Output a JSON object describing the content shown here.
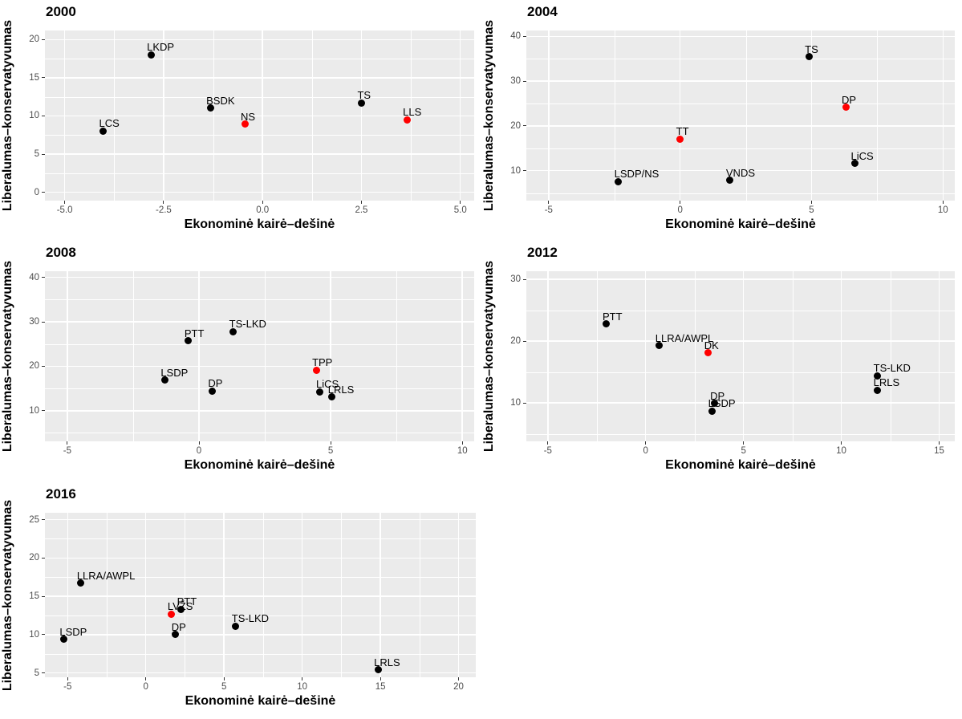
{
  "figure_title": "",
  "axis_titles": {
    "x": "Ekonominė kairė–dešinė",
    "y": "Liberalumas–konservatyvumas"
  },
  "colors": {
    "panel_background": "#EBEBEB",
    "gridline": "#FFFFFF",
    "black": "#000000",
    "red": "#FF0000",
    "tick_label": "#4D4D4D",
    "tick_mark": "#333333",
    "title_text": "#000000",
    "figure_background": "#FFFFFF"
  },
  "chart_data": [
    {
      "type": "scatter",
      "title": "2000",
      "xlabel": "Ekonominė kairė–dešinė",
      "ylabel": "Liberalumas–konservatyvumas",
      "xlim": [
        -5.5,
        5.35
      ],
      "ylim": [
        -1.1,
        21.2
      ],
      "x_ticks": [
        -5,
        -2.5,
        0,
        2.5,
        5
      ],
      "x_tick_labels": [
        "-5.0",
        "-2.5",
        "0.0",
        "2.5",
        "5.0"
      ],
      "x_minor_ticks": [
        -3.75,
        -1.25,
        1.25,
        3.75
      ],
      "y_ticks": [
        0,
        5,
        10,
        15,
        20
      ],
      "y_tick_labels": [
        "0",
        "5",
        "10",
        "15",
        "20"
      ],
      "y_minor_ticks": [
        2.5,
        7.5,
        12.5,
        17.5
      ],
      "grid": true,
      "legend": false,
      "points": [
        {
          "label": "LCS",
          "x": -4.03,
          "y": 8.0,
          "color": "black"
        },
        {
          "label": "LKDP",
          "x": -2.82,
          "y": 18.0,
          "color": "black"
        },
        {
          "label": "BSDK",
          "x": -1.32,
          "y": 11.0,
          "color": "black"
        },
        {
          "label": "NS",
          "x": -0.45,
          "y": 8.9,
          "color": "red"
        },
        {
          "label": "TS",
          "x": 2.5,
          "y": 11.7,
          "color": "black"
        },
        {
          "label": "LLS",
          "x": 3.65,
          "y": 9.5,
          "color": "red"
        }
      ]
    },
    {
      "type": "scatter",
      "title": "2004",
      "xlabel": "Ekonominė kairė–dešinė",
      "ylabel": "Liberalumas–konservatyvumas",
      "xlim": [
        -5.85,
        10.45
      ],
      "ylim": [
        3.3,
        41.3
      ],
      "x_ticks": [
        -5,
        0,
        5,
        10
      ],
      "x_tick_labels": [
        "-5",
        "0",
        "5",
        "10"
      ],
      "x_minor_ticks": [
        -2.5,
        2.5,
        7.5
      ],
      "y_ticks": [
        10,
        20,
        30,
        40
      ],
      "y_tick_labels": [
        "10",
        "20",
        "30",
        "40"
      ],
      "y_minor_ticks": [
        5,
        15,
        25,
        35
      ],
      "grid": true,
      "legend": false,
      "points": [
        {
          "label": "LSDP/NS",
          "x": -2.35,
          "y": 7.6,
          "color": "black"
        },
        {
          "label": "TT",
          "x": 0.0,
          "y": 17.1,
          "color": "red"
        },
        {
          "label": "VNDS",
          "x": 1.9,
          "y": 7.8,
          "color": "black"
        },
        {
          "label": "TS",
          "x": 4.9,
          "y": 35.4,
          "color": "black"
        },
        {
          "label": "DP",
          "x": 6.3,
          "y": 24.1,
          "color": "red"
        },
        {
          "label": "LiCS",
          "x": 6.65,
          "y": 11.6,
          "color": "black"
        }
      ]
    },
    {
      "type": "scatter",
      "title": "2008",
      "xlabel": "Ekonominė kairė–dešinė",
      "ylabel": "Liberalumas–konservatyvumas",
      "xlim": [
        -5.85,
        10.45
      ],
      "ylim": [
        3.1,
        41.4
      ],
      "x_ticks": [
        -5,
        0,
        5,
        10
      ],
      "x_tick_labels": [
        "-5",
        "0",
        "5",
        "10"
      ],
      "x_minor_ticks": [
        -2.5,
        2.5,
        7.5
      ],
      "y_ticks": [
        10,
        20,
        30,
        40
      ],
      "y_tick_labels": [
        "10",
        "20",
        "30",
        "40"
      ],
      "y_minor_ticks": [
        5,
        15,
        25,
        35
      ],
      "grid": true,
      "legend": false,
      "points": [
        {
          "label": "LSDP",
          "x": -1.3,
          "y": 16.9,
          "color": "black"
        },
        {
          "label": "PTT",
          "x": -0.4,
          "y": 25.7,
          "color": "black"
        },
        {
          "label": "DP",
          "x": 0.5,
          "y": 14.4,
          "color": "black"
        },
        {
          "label": "TS-LKD",
          "x": 1.3,
          "y": 27.8,
          "color": "black"
        },
        {
          "label": "TPP",
          "x": 4.45,
          "y": 19.1,
          "color": "red"
        },
        {
          "label": "LiCS",
          "x": 4.6,
          "y": 14.3,
          "color": "black"
        },
        {
          "label": "LRLS",
          "x": 5.05,
          "y": 13.1,
          "color": "black"
        }
      ]
    },
    {
      "type": "scatter",
      "title": "2012",
      "xlabel": "Ekonominė kairė–dešinė",
      "ylabel": "Liberalumas–konservatyvumas",
      "xlim": [
        -6.1,
        15.8
      ],
      "ylim": [
        3.8,
        31.3
      ],
      "x_ticks": [
        -5,
        0,
        5,
        10,
        15
      ],
      "x_tick_labels": [
        "-5",
        "0",
        "5",
        "10",
        "15"
      ],
      "x_minor_ticks": [
        -2.5,
        2.5,
        7.5,
        12.5
      ],
      "y_ticks": [
        10,
        20,
        30
      ],
      "y_tick_labels": [
        "10",
        "20",
        "30"
      ],
      "y_minor_ticks": [
        5,
        15,
        25
      ],
      "grid": true,
      "legend": false,
      "points": [
        {
          "label": "PTT",
          "x": -2.0,
          "y": 22.8,
          "color": "black"
        },
        {
          "label": "LLRA/AWPL",
          "x": 0.7,
          "y": 19.3,
          "color": "black"
        },
        {
          "label": "DK",
          "x": 3.2,
          "y": 18.1,
          "color": "red"
        },
        {
          "label": "LSDP",
          "x": 3.4,
          "y": 8.7,
          "color": "black"
        },
        {
          "label": "DP",
          "x": 3.5,
          "y": 9.9,
          "color": "black"
        },
        {
          "label": "TS-LKD",
          "x": 11.85,
          "y": 14.4,
          "color": "black"
        },
        {
          "label": "LRLS",
          "x": 11.85,
          "y": 12.1,
          "color": "black"
        }
      ]
    },
    {
      "type": "scatter",
      "title": "2016",
      "xlabel": "Ekonominė kairė–dešinė",
      "ylabel": "Liberalumas–konservatyvumas",
      "xlim": [
        -6.45,
        21.1
      ],
      "ylim": [
        4.45,
        25.9
      ],
      "x_ticks": [
        -5,
        0,
        5,
        10,
        15,
        20
      ],
      "x_tick_labels": [
        "-5",
        "0",
        "5",
        "10",
        "15",
        "20"
      ],
      "x_minor_ticks": [
        -2.5,
        2.5,
        7.5,
        12.5,
        17.5
      ],
      "y_ticks": [
        5,
        10,
        15,
        20,
        25
      ],
      "y_tick_labels": [
        "5",
        "10",
        "15",
        "20",
        "25"
      ],
      "y_minor_ticks": [
        7.5,
        12.5,
        17.5,
        22.5
      ],
      "grid": true,
      "legend": false,
      "points": [
        {
          "label": "LSDP",
          "x": -5.25,
          "y": 9.4,
          "color": "black"
        },
        {
          "label": "LLRA/AWPL",
          "x": -4.15,
          "y": 16.7,
          "color": "black"
        },
        {
          "label": "LVŽS",
          "x": 1.65,
          "y": 12.7,
          "color": "red"
        },
        {
          "label": "PTT",
          "x": 2.25,
          "y": 13.3,
          "color": "black"
        },
        {
          "label": "DP",
          "x": 1.9,
          "y": 10.0,
          "color": "black"
        },
        {
          "label": "TS-LKD",
          "x": 5.75,
          "y": 11.1,
          "color": "black"
        },
        {
          "label": "LRLS",
          "x": 14.85,
          "y": 5.4,
          "color": "black"
        }
      ]
    }
  ]
}
